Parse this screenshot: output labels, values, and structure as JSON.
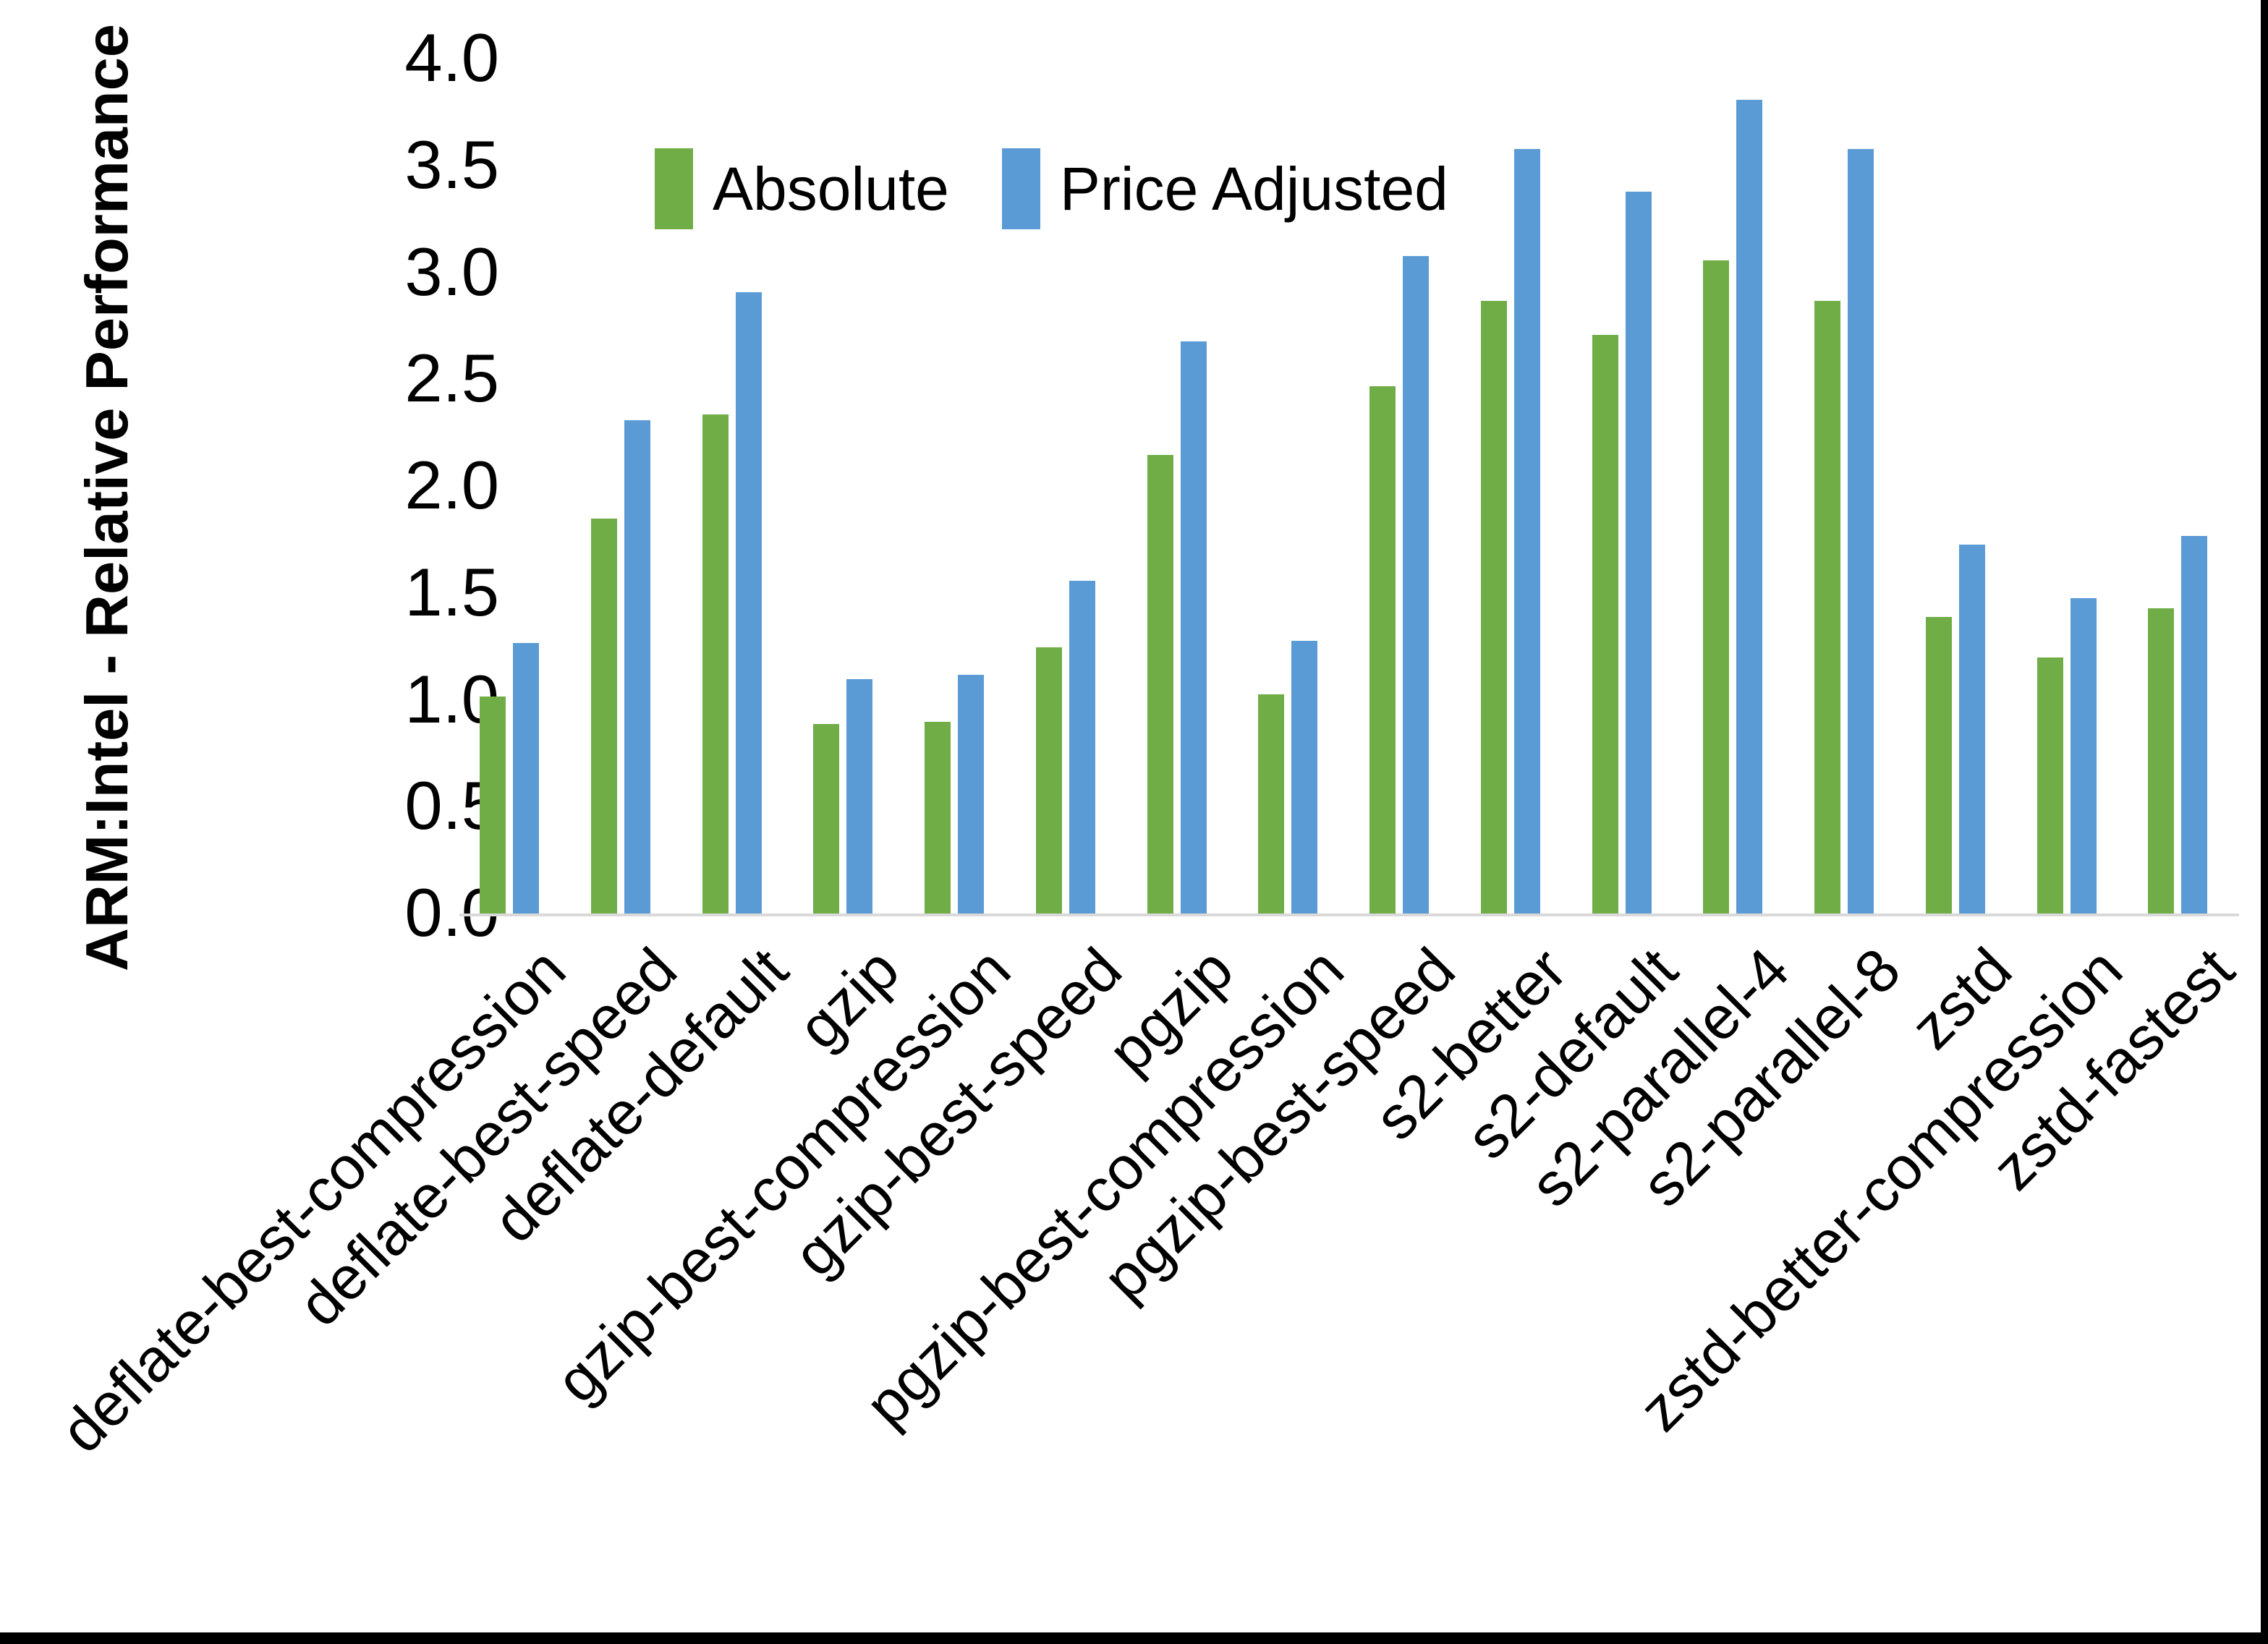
{
  "chart_data": {
    "type": "bar",
    "title": "",
    "xlabel": "",
    "ylabel": "ARM:Intel - Relative Performance",
    "ylim": [
      0.0,
      4.0
    ],
    "ytick_step": 0.5,
    "yticks": [
      "4.0",
      "3.5",
      "3.0",
      "2.5",
      "2.0",
      "1.5",
      "1.0",
      "0.5",
      "0.0"
    ],
    "grid": false,
    "legend_position": "top-center-inside",
    "baseline_color": "#D9D9D9",
    "categories": [
      "deflate-best-compression",
      "deflate-best-speed",
      "deflate-default",
      "gzip",
      "gzip-best-compression",
      "gzip-best-speed",
      "pgzip",
      "pgzip-best-compression",
      "pgzip-best-speed",
      "s2-better",
      "s2-default",
      "s2-parallel-4",
      "s2-parallel-8",
      "zstd",
      "zstd-better-compression",
      "zstd-fastest"
    ],
    "series": [
      {
        "name": "Absolute",
        "color": "#70AD47",
        "values": [
          1.02,
          1.85,
          2.34,
          0.89,
          0.9,
          1.25,
          2.15,
          1.03,
          2.47,
          2.87,
          2.71,
          3.06,
          2.87,
          1.39,
          1.2,
          1.43
        ]
      },
      {
        "name": "Price Adjusted",
        "color": "#5B9BD5",
        "values": [
          1.27,
          2.31,
          2.91,
          1.1,
          1.12,
          1.56,
          2.68,
          1.28,
          3.08,
          3.58,
          3.38,
          3.81,
          3.58,
          1.73,
          1.48,
          1.77
        ]
      }
    ]
  }
}
